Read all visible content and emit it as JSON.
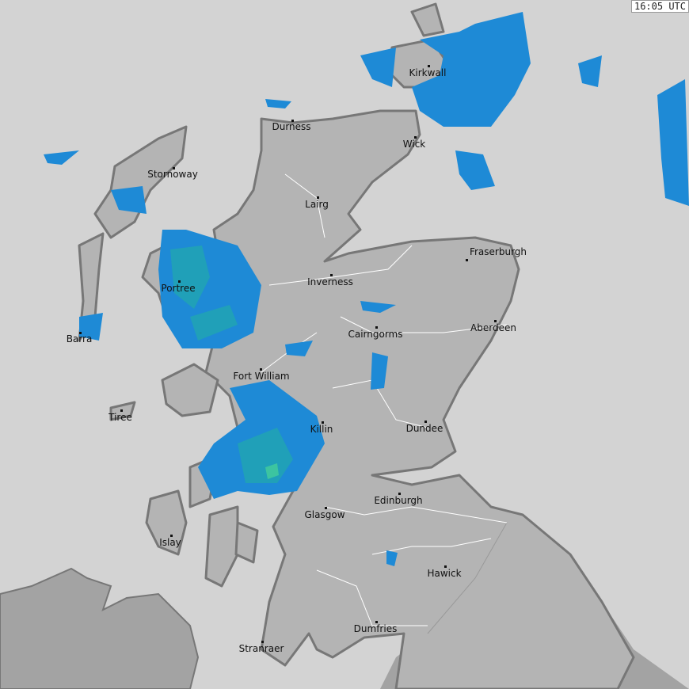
{
  "timestamp": "16:05 UTC",
  "colors": {
    "sea": "#d3d3d3",
    "land": "#b4b4b4",
    "land_other": "#a3a3a3",
    "coast": "#777777",
    "rain_light": "#1e8ad6",
    "rain_mid": "#20a0b8",
    "rain_heavy": "#3cc4a0"
  },
  "places": [
    "Kirkwall",
    "Durness",
    "Wick",
    "Stornoway",
    "Lairg",
    "Fraserburgh",
    "Inverness",
    "Portree",
    "Aberdeen",
    "Cairngorms",
    "Barra",
    "Fort William",
    "Tiree",
    "Killin",
    "Dundee",
    "Edinburgh",
    "Glasgow",
    "Islay",
    "Hawick",
    "Dumfries",
    "Stranraer"
  ]
}
